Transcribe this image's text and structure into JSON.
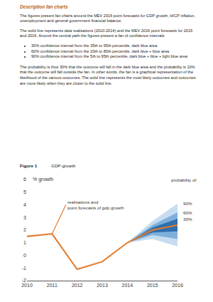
{
  "header": {
    "title": "Description fan charts"
  },
  "body": {
    "intro": "The figures present fan charts around the MEV 2016 point forecasts for GDP growth, HICP inflation, unemployment and general government financial balance.",
    "realisations": "The solid line represents data realisations (2010-2014) and the MEV 2016 point forecasts for 2015 and 2016. Around the central path the figures present a fan of confidence intervals:",
    "bullets": [
      "30% confidence interval from the 35th to 65th percentile, dark blue area",
      "60% confidence interval from the 20th to 80th percentile, dark blue + blue area",
      "90% confidence interval from the 5th to 95th percentile, dark blue + blue + light blue area"
    ],
    "closing": "The probability is thus 30% that the outcome will fall in the dark blue area and the probability is 10% that the outcome will fall outside the fan. In other words, the fan is a graphical representation of the likelihood of the various outcomes. The solid line represents the most likely outcomes and outcomes are more likely when they are closer to the solid line."
  },
  "chart_data": {
    "type": "line",
    "figure_label": "Figure 1",
    "title": "GDP-growth",
    "y_label": "% growth",
    "x": [
      2010,
      2011,
      2012,
      2013,
      2014,
      2015,
      2016
    ],
    "series": [
      {
        "color": "#e37b2c",
        "values": [
          1.5,
          1.7,
          -1.1,
          -0.5,
          1.0,
          2.0,
          2.4
        ]
      }
    ],
    "annotation": {
      "lines": [
        "realisations and",
        "point forecasts of gdp growth"
      ]
    },
    "legend_title": "probability of:",
    "bands": [
      {
        "name": "90%",
        "color": "#c6dcf0",
        "x": [
          2014,
          2015,
          2016
        ],
        "lower": [
          1.0,
          1.3,
          0.7
        ],
        "upper": [
          1.0,
          2.7,
          4.1
        ]
      },
      {
        "name": "60%",
        "color": "#7fb0dc",
        "x": [
          2014,
          2015,
          2016
        ],
        "lower": [
          1.0,
          1.6,
          1.3
        ],
        "upper": [
          1.0,
          2.4,
          3.4
        ]
      },
      {
        "name": "30%",
        "color": "#2f6fad",
        "x": [
          2014,
          2015,
          2016
        ],
        "lower": [
          1.0,
          1.8,
          1.9
        ],
        "upper": [
          1.0,
          2.2,
          2.9
        ]
      }
    ],
    "xlim": [
      2010,
      2016
    ],
    "xticks": [
      2010,
      2011,
      2012,
      2013,
      2014,
      2015,
      2016
    ],
    "ylim": [
      -2,
      6
    ],
    "yticks": [
      -2,
      -1,
      0,
      1,
      2,
      3,
      4,
      5,
      6
    ],
    "grid": false
  }
}
